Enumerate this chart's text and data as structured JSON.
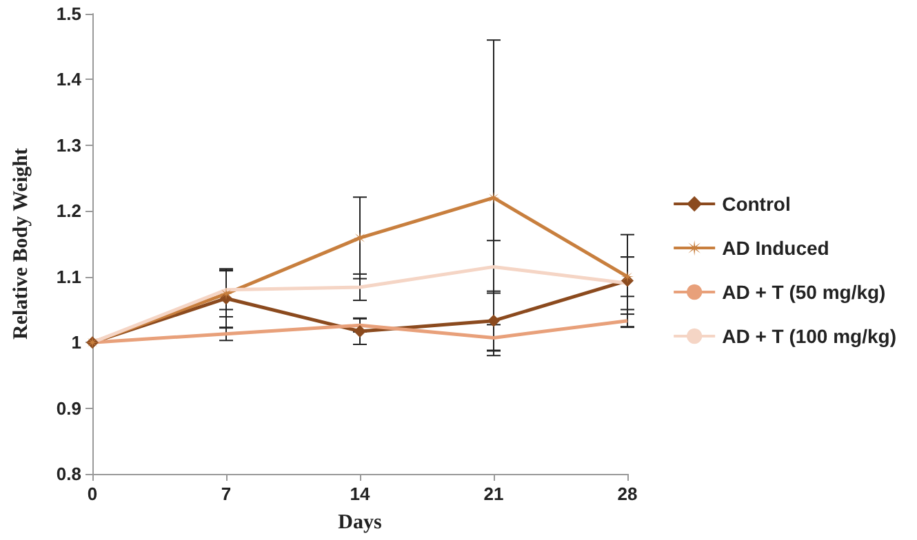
{
  "chart_data": {
    "type": "line",
    "xlabel": "Days",
    "ylabel": "Relative Body Weight",
    "categories": [
      "0",
      "7",
      "14",
      "21",
      "28"
    ],
    "ylim": [
      0.8,
      1.5
    ],
    "yticks": [
      0.8,
      0.9,
      1,
      1.1,
      1.2,
      1.3,
      1.4,
      1.5
    ],
    "grid": false,
    "legend": "right",
    "series": [
      {
        "name": "Control",
        "color": "#8b4a1e",
        "marker": "diamond",
        "values": [
          1,
          1.067,
          1.017,
          1.033,
          1.094
        ],
        "errors": [
          null,
          0.045,
          0.02,
          0.045,
          0.07
        ]
      },
      {
        "name": "AD Induced",
        "color": "#c87f3e",
        "marker": "star",
        "values": [
          1,
          1.074,
          1.159,
          1.22,
          1.1
        ],
        "errors": [
          null,
          0.035,
          0.062,
          0.24,
          0.03
        ]
      },
      {
        "name": "AD + T (50 mg/kg)",
        "color": "#e8a07a",
        "marker": "none",
        "values": [
          1,
          1.013,
          1.026,
          1.007,
          1.033
        ],
        "errors": [
          null,
          0.01,
          0.01,
          0.02,
          0.01
        ]
      },
      {
        "name": "AD + T (100 mg/kg)",
        "color": "#f5d5c5",
        "marker": "none",
        "values": [
          1,
          1.08,
          1.084,
          1.115,
          1.09
        ],
        "errors": [
          null,
          0.03,
          0.02,
          0.04,
          0.04
        ]
      }
    ]
  }
}
